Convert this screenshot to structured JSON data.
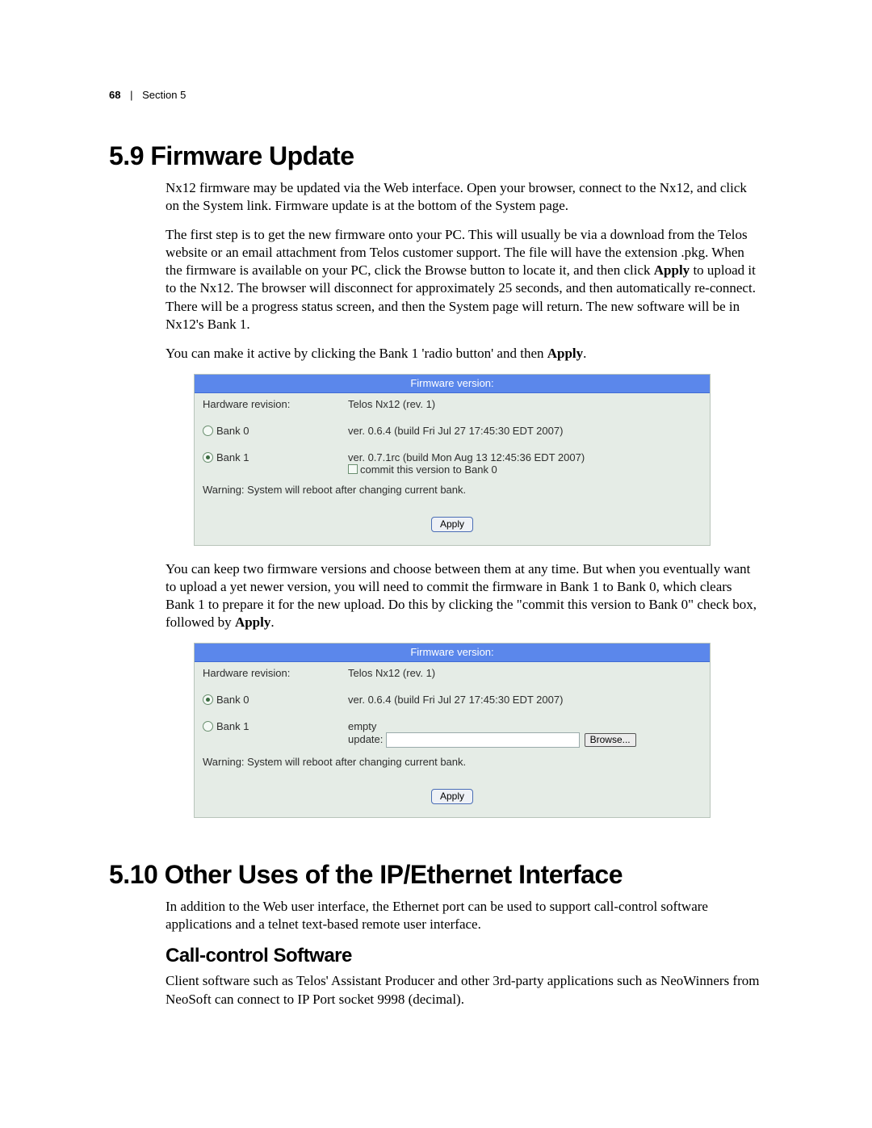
{
  "header": {
    "page_number": "68",
    "divider": "|",
    "section": "Section 5"
  },
  "s59": {
    "heading": "5.9  Firmware Update",
    "p1": "Nx12 firmware may be updated via the Web interface. Open your browser, connect to the Nx12, and click on the System link. Firmware update is at the bottom of the System page.",
    "p2a": "The first step is to get the new firmware onto your PC. This will usually be via a download from the Telos website or an email attachment from Telos customer support. The file will have the extension .pkg. When the firmware is available on your PC, click the Browse button to locate it, and then click ",
    "p2b_bold": "Apply",
    "p2c": " to upload it to the Nx12. The browser will disconnect for approximately 25 seconds, and then automatically re-connect. There will be a progress status screen, and then the System page will return. The new software will be in Nx12's Bank 1.",
    "p3a": "You can make it active by clicking the Bank 1 'radio button' and then ",
    "p3b_bold": "Apply",
    "p3c": "."
  },
  "fw1": {
    "title": "Firmware version:",
    "hw_label": "Hardware revision:",
    "hw_value": "Telos Nx12 (rev. 1)",
    "bank0_label": "Bank 0",
    "bank0_value": "ver. 0.6.4 (build Fri Jul 27 17:45:30 EDT 2007)",
    "bank1_label": "Bank 1",
    "bank1_value": "ver. 0.7.1rc (build Mon Aug 13 12:45:36 EDT 2007)",
    "commit_label": "commit this version to Bank 0",
    "warning": "Warning: System will reboot after changing current bank.",
    "apply": "Apply"
  },
  "s59b": {
    "p4a": "You can keep two firmware versions and choose between them at any time. But when you eventually want to upload a yet newer version, you will need to commit the firmware in Bank 1 to Bank 0, which clears Bank 1 to prepare it for the new upload. Do this by clicking the \"commit this version to Bank 0\" check box, followed by ",
    "p4b_bold": "Apply",
    "p4c": "."
  },
  "fw2": {
    "title": "Firmware version:",
    "hw_label": "Hardware revision:",
    "hw_value": "Telos Nx12 (rev. 1)",
    "bank0_label": "Bank 0",
    "bank0_value": "ver. 0.6.4 (build Fri Jul 27 17:45:30 EDT 2007)",
    "bank1_label": "Bank 1",
    "bank1_empty": "empty",
    "update_label": "update:",
    "browse": "Browse...",
    "warning": "Warning: System will reboot after changing current bank.",
    "apply": "Apply"
  },
  "s510": {
    "heading": "5.10  Other Uses of the IP/Ethernet Interface",
    "p1": "In addition to the Web user interface, the Ethernet port can be used to support call-control software applications and a telnet text-based remote user interface.",
    "subheading": "Call-control Software",
    "p2": "Client software such as Telos' Assistant Producer and other 3rd-party applications such as NeoWinners from NeoSoft can connect to IP Port socket 9998 (decimal)."
  }
}
